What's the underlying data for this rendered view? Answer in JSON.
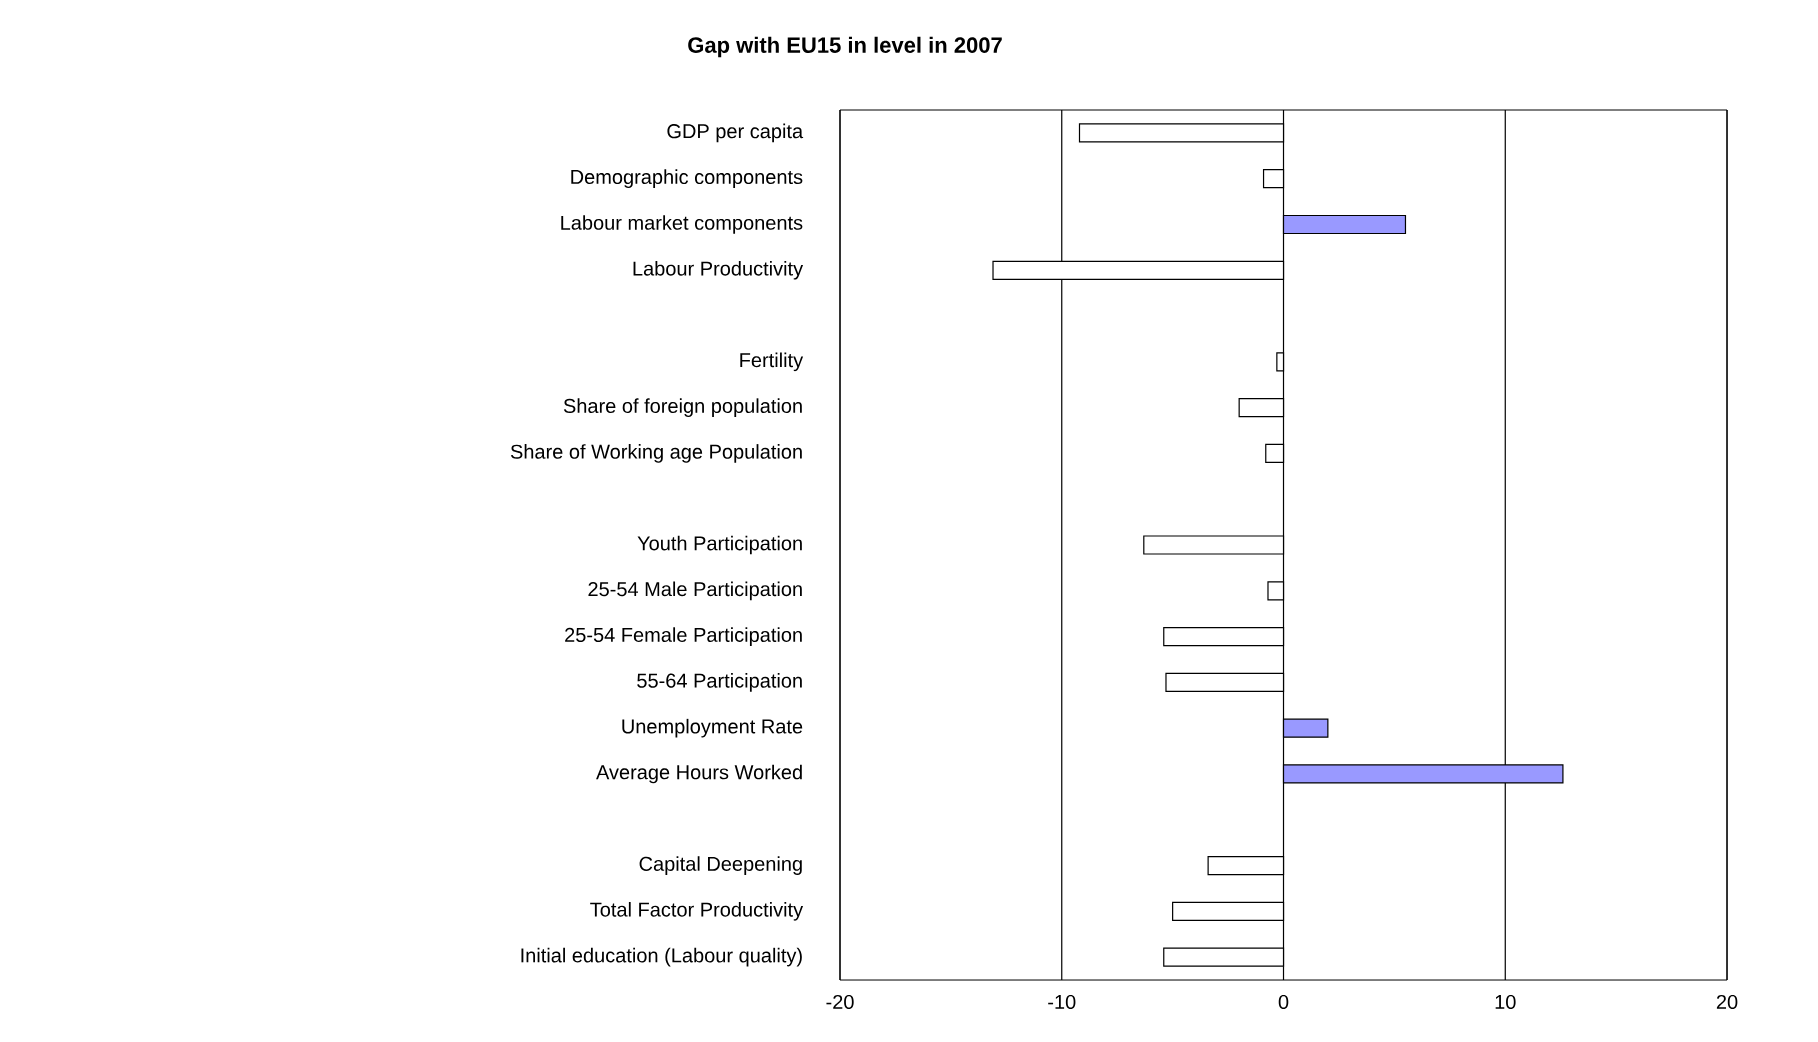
{
  "chart_data": {
    "type": "bar",
    "orientation": "horizontal",
    "title": "Gap with EU15 in level in 2007",
    "categories": [
      "GDP per capita",
      "Demographic components",
      "Labour market components",
      "Labour Productivity",
      null,
      "Fertility",
      "Share of foreign population",
      "Share of Working age Population",
      null,
      "Youth Participation",
      "25-54 Male Participation",
      "25-54 Female Participation",
      "55-64 Participation",
      "Unemployment Rate",
      "Average Hours Worked",
      null,
      "Capital Deepening",
      "Total Factor Productivity",
      "Initial education (Labour quality)"
    ],
    "values": [
      -9.2,
      -0.9,
      5.5,
      -13.1,
      null,
      -0.3,
      -2.0,
      -0.8,
      null,
      -6.3,
      -0.7,
      -5.4,
      -5.3,
      2.0,
      12.6,
      null,
      -3.4,
      -5.0,
      -5.4
    ],
    "colors": [
      "#ffffff",
      "#ffffff",
      "#9999ff",
      "#ffffff",
      null,
      "#ffffff",
      "#ffffff",
      "#ffffff",
      null,
      "#ffffff",
      "#ffffff",
      "#ffffff",
      "#ffffff",
      "#9999ff",
      "#9999ff",
      null,
      "#ffffff",
      "#ffffff",
      "#ffffff"
    ],
    "xlim": [
      -20,
      20
    ],
    "xticks": [
      -20,
      -10,
      0,
      10,
      20
    ],
    "grid": "x"
  }
}
